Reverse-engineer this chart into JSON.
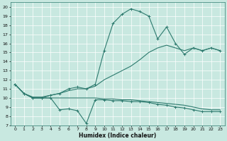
{
  "xlabel": "Humidex (Indice chaleur)",
  "bg_color": "#c8e8e0",
  "line_color": "#2d7a6e",
  "grid_color": "#ffffff",
  "xlim": [
    -0.5,
    23.5
  ],
  "ylim": [
    7,
    20.5
  ],
  "yticks": [
    7,
    8,
    9,
    10,
    11,
    12,
    13,
    14,
    15,
    16,
    17,
    18,
    19,
    20
  ],
  "xticks": [
    0,
    1,
    2,
    3,
    4,
    5,
    6,
    7,
    8,
    9,
    10,
    11,
    12,
    13,
    14,
    15,
    16,
    17,
    18,
    19,
    20,
    21,
    22,
    23
  ],
  "line_zigzag_x": [
    0,
    1,
    2,
    3,
    4,
    5,
    6,
    7,
    8,
    9,
    10,
    11,
    12,
    13,
    14,
    15,
    16,
    17,
    18,
    19,
    20,
    21,
    22,
    23
  ],
  "line_zigzag_y": [
    11.5,
    10.5,
    10.0,
    10.0,
    10.0,
    8.7,
    8.8,
    8.6,
    7.2,
    9.8,
    9.8,
    9.7,
    9.7,
    9.6,
    9.6,
    9.5,
    9.3,
    9.2,
    9.0,
    8.9,
    8.7,
    8.5,
    8.5,
    8.5
  ],
  "line_peak_x": [
    0,
    1,
    2,
    3,
    4,
    5,
    6,
    7,
    8,
    9,
    10,
    11,
    12,
    13,
    14,
    15,
    16,
    17,
    18,
    19,
    20,
    21,
    22,
    23
  ],
  "line_peak_y": [
    11.5,
    10.5,
    10.0,
    10.0,
    10.3,
    10.5,
    11.0,
    11.2,
    11.0,
    11.5,
    15.2,
    18.2,
    19.2,
    19.8,
    19.5,
    19.0,
    16.5,
    17.8,
    16.0,
    14.8,
    15.5,
    15.2,
    15.5,
    15.2
  ],
  "line_rise_x": [
    0,
    1,
    2,
    3,
    4,
    5,
    6,
    7,
    8,
    9,
    10,
    11,
    12,
    13,
    14,
    15,
    16,
    17,
    18,
    19,
    20,
    21,
    22,
    23
  ],
  "line_rise_y": [
    11.5,
    10.5,
    10.1,
    10.1,
    10.3,
    10.5,
    10.8,
    11.0,
    11.0,
    11.3,
    12.0,
    12.5,
    13.0,
    13.5,
    14.2,
    15.0,
    15.5,
    15.8,
    15.5,
    15.2,
    15.5,
    15.2,
    15.5,
    15.2
  ],
  "line_flat_x": [
    0,
    1,
    2,
    3,
    4,
    5,
    6,
    7,
    8,
    9,
    10,
    11,
    12,
    13,
    14,
    15,
    16,
    17,
    18,
    19,
    20,
    21,
    22,
    23
  ],
  "line_flat_y": [
    11.5,
    10.5,
    10.0,
    10.0,
    10.0,
    10.0,
    10.0,
    10.0,
    10.0,
    10.0,
    9.9,
    9.9,
    9.8,
    9.8,
    9.7,
    9.6,
    9.5,
    9.4,
    9.3,
    9.2,
    9.0,
    8.8,
    8.7,
    8.7
  ]
}
